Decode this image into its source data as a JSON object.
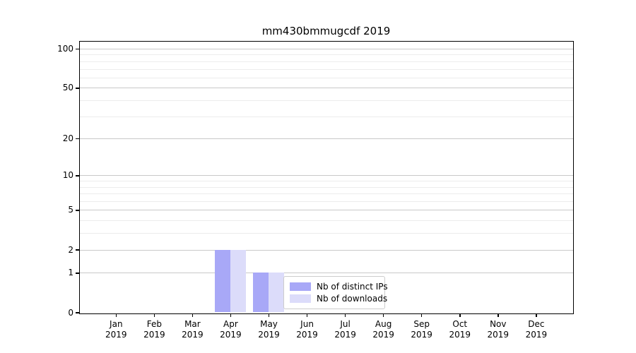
{
  "page": {
    "background": "#ffffff"
  },
  "chart_data": {
    "type": "bar",
    "title": "mm430bmmugcdf 2019",
    "year": "2019",
    "categories": [
      "Jan",
      "Feb",
      "Mar",
      "Apr",
      "May",
      "Jun",
      "Jul",
      "Aug",
      "Sep",
      "Oct",
      "Nov",
      "Dec"
    ],
    "series": [
      {
        "name": "Nb of distinct IPs",
        "color": "#a8a8f7",
        "values": [
          0,
          0,
          0,
          2,
          1,
          0,
          0,
          0,
          0,
          0,
          0,
          0
        ]
      },
      {
        "name": "Nb of downloads",
        "color": "#dcdcfa",
        "values": [
          0,
          0,
          0,
          2,
          1,
          0,
          0,
          0,
          0,
          0,
          0,
          0
        ]
      }
    ],
    "yscale": "log1p",
    "ylim": [
      0,
      114
    ],
    "y_major_ticks": [
      0,
      1,
      2,
      5,
      10,
      20,
      50,
      100
    ],
    "y_minor_ticks": [
      3,
      4,
      6,
      7,
      8,
      9,
      30,
      40,
      60,
      70,
      80,
      90
    ],
    "grid": true,
    "legend_position": "lower center",
    "colors": {
      "major_grid": "#c9c9c9",
      "minor_grid": "#ececec",
      "spine": "#000000",
      "text": "#000000",
      "legend_border": "#cccccc",
      "legend_bg": "rgba(255,255,255,0.8)"
    }
  }
}
